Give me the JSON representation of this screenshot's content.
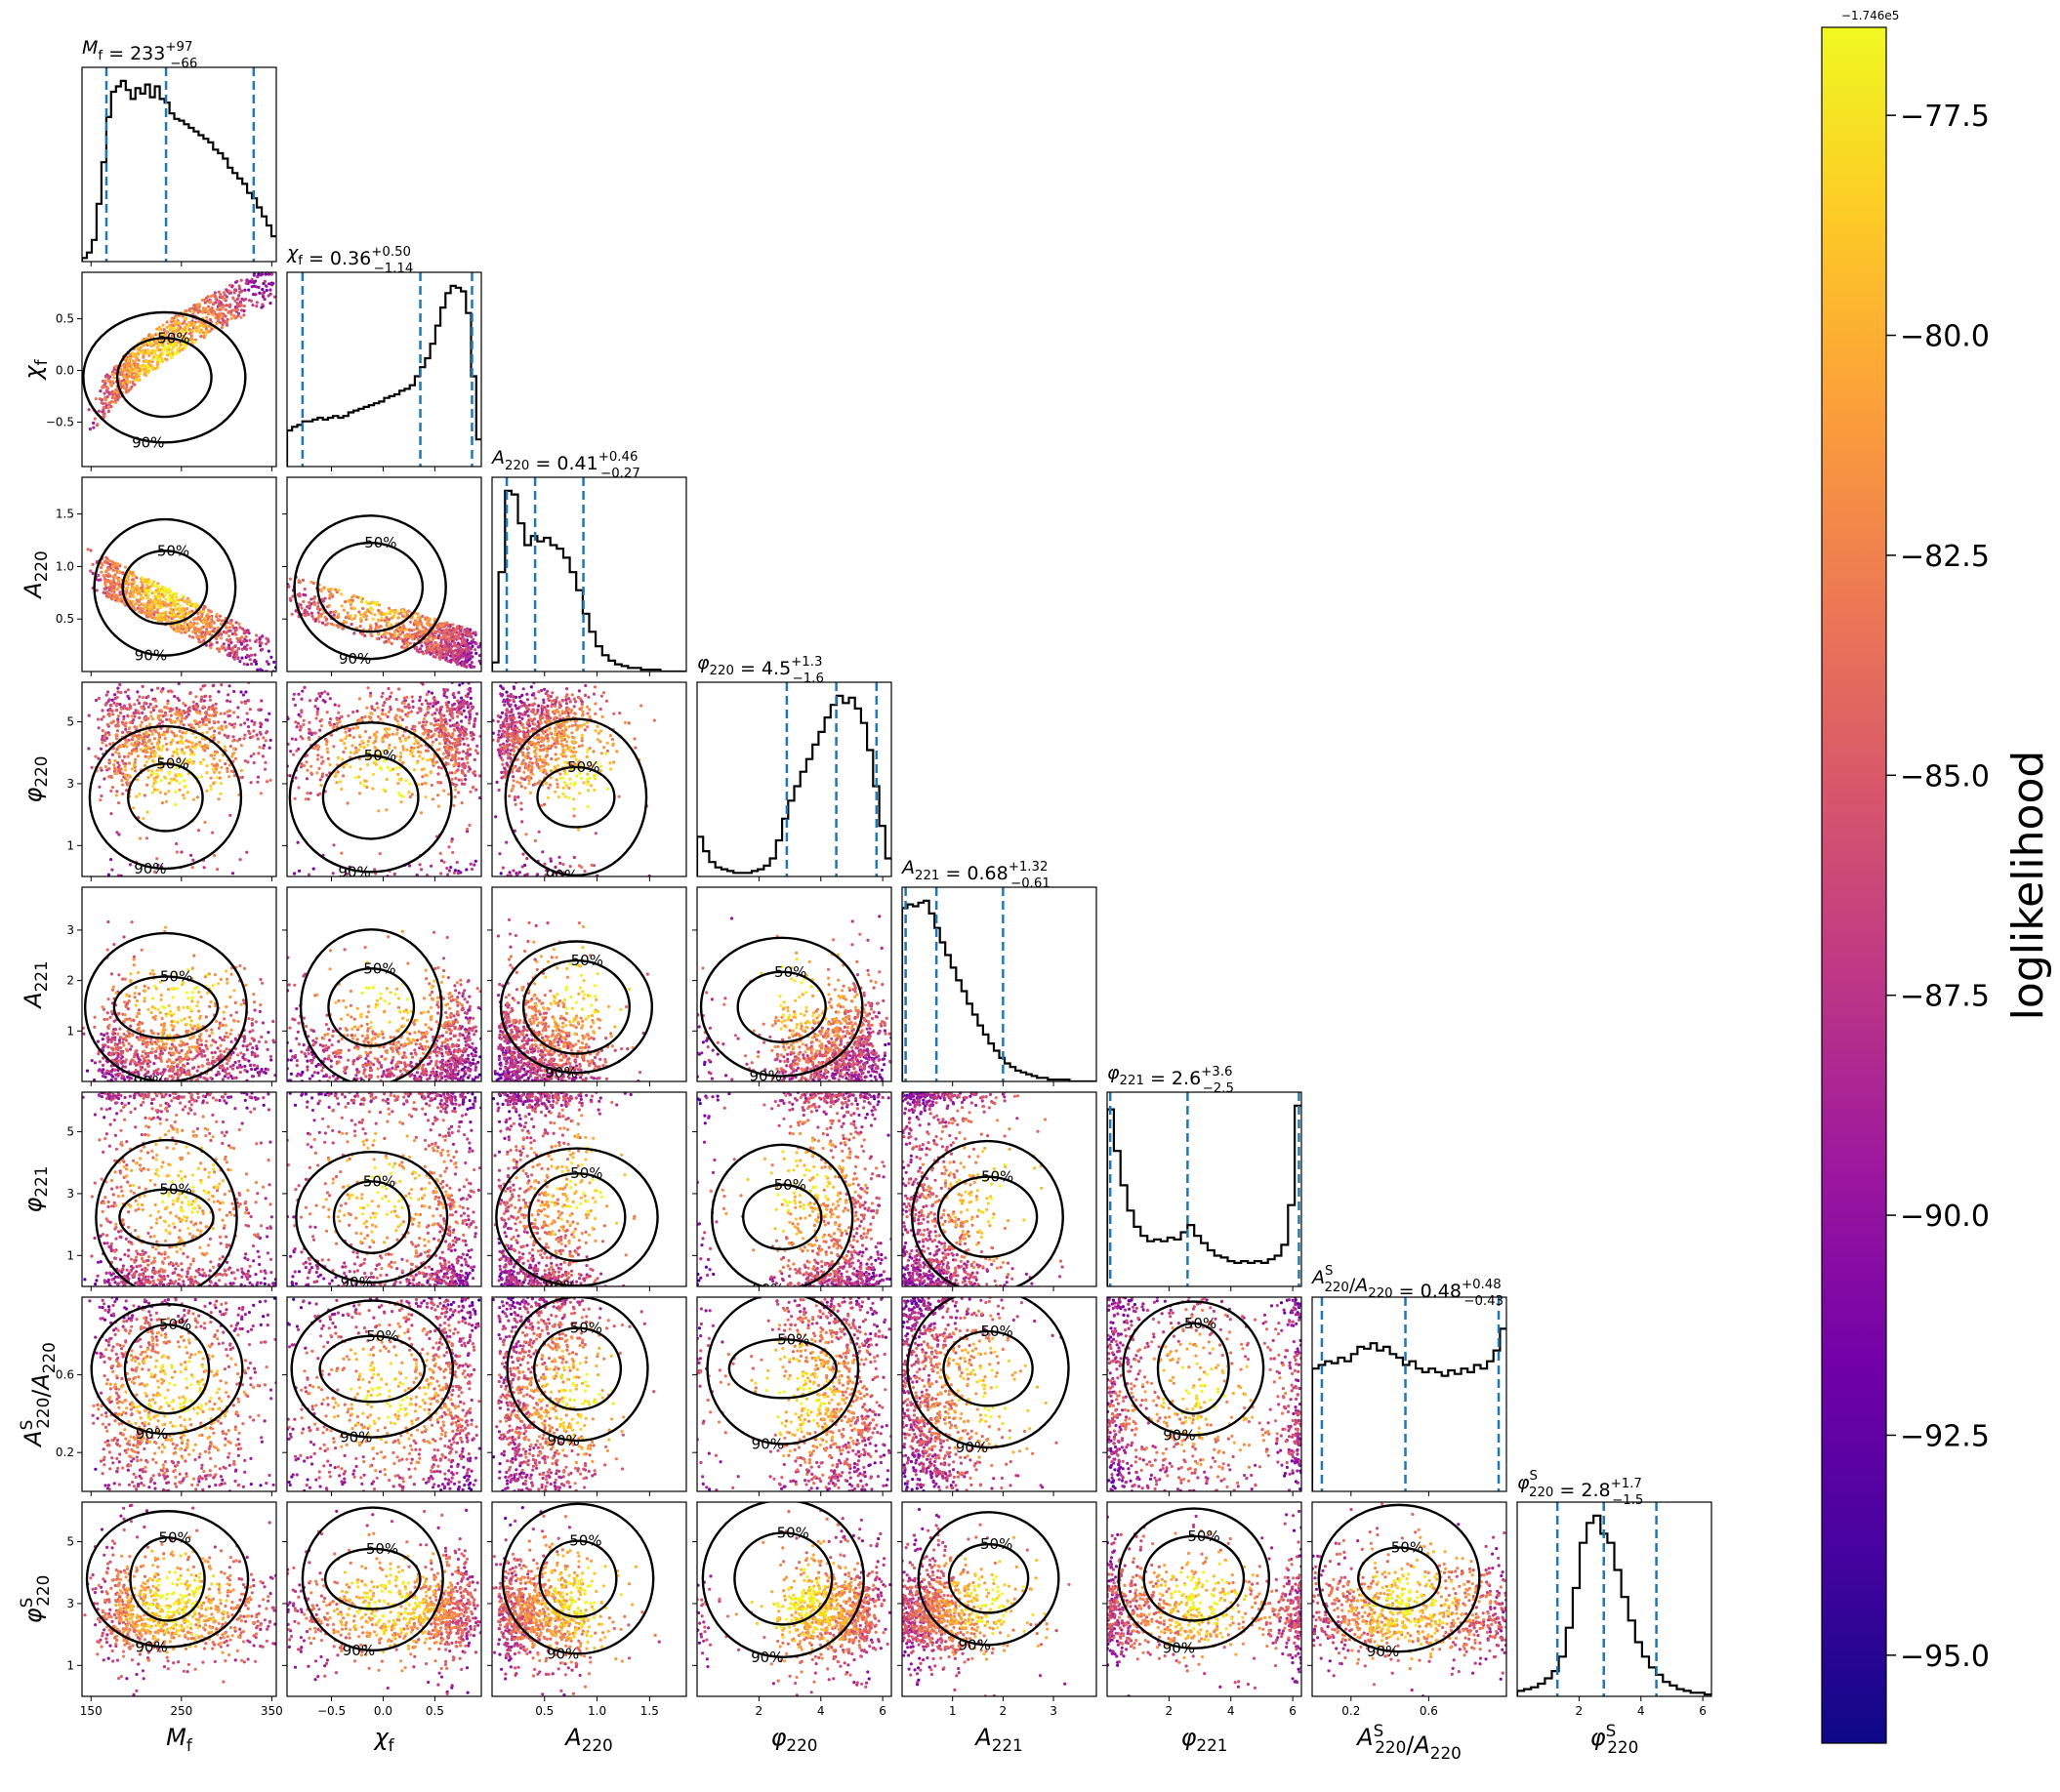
{
  "chart_data": {
    "type": "scatter",
    "subtype": "corner-plot",
    "params": [
      {
        "key": "Mf",
        "sym": "M",
        "sub": "f",
        "sup": "",
        "axis_label": "M_f",
        "range": [
          140,
          355
        ],
        "ticks": [
          150,
          250,
          350
        ],
        "tick_labels": [
          "150",
          "250",
          "350"
        ],
        "median": 233,
        "err_plus": "97",
        "err_minus": "66",
        "median_label": "233",
        "y_ticks": [],
        "y_tick_labels": [],
        "hist": [
          0.02,
          0.05,
          0.12,
          0.32,
          0.55,
          0.8,
          0.94,
          0.97,
          1.0,
          0.95,
          0.9,
          0.96,
          0.93,
          0.98,
          0.91,
          0.97,
          0.9,
          0.88,
          0.82,
          0.79,
          0.78,
          0.76,
          0.74,
          0.72,
          0.7,
          0.68,
          0.66,
          0.62,
          0.6,
          0.57,
          0.52,
          0.49,
          0.46,
          0.43,
          0.38,
          0.35,
          0.3,
          0.25,
          0.2,
          0.14
        ]
      },
      {
        "key": "chif",
        "sym": "χ",
        "sub": "f",
        "sup": "",
        "axis_label": "χ_f",
        "range": [
          -0.93,
          0.95
        ],
        "ticks": [
          -0.5,
          0.0,
          0.5
        ],
        "tick_labels": [
          "−0.5",
          "0.0",
          "0.5"
        ],
        "median": 0.36,
        "err_plus": "0.50",
        "err_minus": "1.14",
        "median_label": "0.36",
        "y_ticks": [
          -0.5,
          0.0,
          0.5
        ],
        "y_tick_labels": [
          "−0.5",
          "0.0",
          "0.5"
        ],
        "hist": [
          0.2,
          0.22,
          0.23,
          0.25,
          0.25,
          0.26,
          0.27,
          0.26,
          0.27,
          0.28,
          0.27,
          0.28,
          0.3,
          0.31,
          0.32,
          0.33,
          0.34,
          0.35,
          0.36,
          0.38,
          0.39,
          0.4,
          0.42,
          0.43,
          0.45,
          0.5,
          0.55,
          0.6,
          0.68,
          0.78,
          0.88,
          0.96,
          1.0,
          0.99,
          0.97,
          0.85,
          0.5,
          0.15
        ]
      },
      {
        "key": "A220",
        "sym": "A",
        "sub": "220",
        "sup": "",
        "axis_label": "A_220",
        "range": [
          0.0,
          1.85
        ],
        "ticks": [
          0.5,
          1.0,
          1.5
        ],
        "tick_labels": [
          "0.5",
          "1.0",
          "1.5"
        ],
        "median": 0.41,
        "err_plus": "0.46",
        "err_minus": "0.27",
        "median_label": "0.41",
        "y_ticks": [
          0.5,
          1.0,
          1.5
        ],
        "y_tick_labels": [
          "0.5",
          "1.0",
          "1.5"
        ],
        "hist": [
          0.05,
          0.55,
          1.0,
          0.98,
          0.82,
          0.7,
          0.75,
          0.72,
          0.74,
          0.7,
          0.68,
          0.63,
          0.55,
          0.45,
          0.32,
          0.22,
          0.14,
          0.09,
          0.06,
          0.04,
          0.03,
          0.02,
          0.02,
          0.01,
          0.01,
          0.01,
          0.0,
          0.0,
          0.0,
          0.0
        ]
      },
      {
        "key": "phi220",
        "sym": "φ",
        "sub": "220",
        "sup": "",
        "axis_label": "φ_220",
        "range": [
          0.0,
          6.28
        ],
        "ticks": [
          2,
          4,
          6
        ],
        "tick_labels": [
          "2",
          "4",
          "6"
        ],
        "median": 4.5,
        "err_plus": "1.3",
        "err_minus": "1.6",
        "median_label": "4.5",
        "y_ticks": [
          1,
          3,
          5
        ],
        "y_tick_labels": [
          "1",
          "3",
          "5"
        ],
        "hist": [
          0.22,
          0.14,
          0.08,
          0.05,
          0.04,
          0.03,
          0.02,
          0.02,
          0.02,
          0.03,
          0.04,
          0.06,
          0.1,
          0.2,
          0.32,
          0.42,
          0.5,
          0.58,
          0.65,
          0.73,
          0.8,
          0.88,
          0.95,
          1.0,
          0.96,
          0.99,
          0.93,
          0.85,
          0.7,
          0.5,
          0.28,
          0.1
        ]
      },
      {
        "key": "A221",
        "sym": "A",
        "sub": "221",
        "sup": "",
        "axis_label": "A_221",
        "range": [
          0.0,
          3.85
        ],
        "ticks": [
          1,
          2,
          3
        ],
        "tick_labels": [
          "1",
          "2",
          "3"
        ],
        "median": 0.68,
        "err_plus": "1.32",
        "err_minus": "0.61",
        "median_label": "0.68",
        "y_ticks": [
          1,
          2,
          3
        ],
        "y_tick_labels": [
          "1",
          "2",
          "3"
        ],
        "hist": [
          0.96,
          0.98,
          0.97,
          0.99,
          1.0,
          0.93,
          0.85,
          0.77,
          0.7,
          0.63,
          0.56,
          0.5,
          0.43,
          0.37,
          0.31,
          0.26,
          0.21,
          0.17,
          0.13,
          0.1,
          0.08,
          0.06,
          0.05,
          0.04,
          0.03,
          0.02,
          0.02,
          0.01,
          0.01,
          0.01,
          0.01,
          0.0,
          0.0,
          0.0,
          0.0,
          0.0
        ]
      },
      {
        "key": "phi221",
        "sym": "φ",
        "sub": "221",
        "sup": "",
        "axis_label": "φ_221",
        "range": [
          0.0,
          6.28
        ],
        "ticks": [
          2,
          4,
          6
        ],
        "tick_labels": [
          "2",
          "4",
          "6"
        ],
        "median": 2.6,
        "err_plus": "3.6",
        "err_minus": "2.5",
        "median_label": "2.6",
        "y_ticks": [
          1,
          3,
          5
        ],
        "y_tick_labels": [
          "1",
          "3",
          "5"
        ],
        "hist": [
          0.98,
          0.75,
          0.56,
          0.42,
          0.33,
          0.28,
          0.25,
          0.26,
          0.25,
          0.27,
          0.26,
          0.3,
          0.34,
          0.28,
          0.24,
          0.2,
          0.17,
          0.16,
          0.14,
          0.13,
          0.14,
          0.13,
          0.14,
          0.13,
          0.15,
          0.17,
          0.23,
          0.45,
          1.0
        ]
      },
      {
        "key": "AS220",
        "sym": "A",
        "sub": "220",
        "sup": "S",
        "axis_label": "A^S_220/A_220",
        "range": [
          0.0,
          1.0
        ],
        "ticks": [
          0.2,
          0.6
        ],
        "tick_labels": [
          "0.2",
          "0.6"
        ],
        "median": 0.48,
        "err_plus": "0.48",
        "err_minus": "0.43",
        "median_label": "0.48",
        "y_ticks": [
          0.2,
          0.6
        ],
        "y_tick_labels": [
          "0.2",
          "0.6"
        ],
        "hist": [
          0.68,
          0.7,
          0.72,
          0.71,
          0.74,
          0.72,
          0.76,
          0.8,
          0.79,
          0.82,
          0.78,
          0.8,
          0.76,
          0.74,
          0.7,
          0.72,
          0.68,
          0.66,
          0.68,
          0.66,
          0.64,
          0.67,
          0.65,
          0.68,
          0.66,
          0.7,
          0.68,
          0.72,
          0.78,
          0.9
        ]
      },
      {
        "key": "phiS220",
        "sym": "φ",
        "sub": "220",
        "sup": "S",
        "axis_label": "φ^S_220",
        "range": [
          0.0,
          6.28
        ],
        "ticks": [
          2,
          4,
          6
        ],
        "tick_labels": [
          "2",
          "4",
          "6"
        ],
        "median": 2.8,
        "err_plus": "1.7",
        "err_minus": "1.5",
        "median_label": "2.8",
        "y_ticks": [
          1,
          3,
          5
        ],
        "y_tick_labels": [
          "1",
          "3",
          "5"
        ],
        "hist": [
          0.03,
          0.04,
          0.05,
          0.07,
          0.1,
          0.14,
          0.22,
          0.38,
          0.6,
          0.85,
          0.96,
          1.0,
          0.9,
          0.85,
          0.7,
          0.55,
          0.42,
          0.3,
          0.22,
          0.16,
          0.12,
          0.08,
          0.06,
          0.04,
          0.03,
          0.02,
          0.02,
          0.01
        ]
      }
    ],
    "contour_labels": [
      "50%",
      "90%"
    ],
    "colorbar": {
      "label": "loglikelihood",
      "offset_text": "−1.746e5",
      "range": [
        -96.0,
        -76.5
      ],
      "ticks": [
        -95.0,
        -92.5,
        -90.0,
        -87.5,
        -85.0,
        -82.5,
        -80.0,
        -77.5
      ],
      "tick_labels": [
        "−95.0",
        "−92.5",
        "−90.0",
        "−87.5",
        "−85.0",
        "−82.5",
        "−80.0",
        "−77.5"
      ],
      "colormap": "plasma",
      "stops": [
        "#0d0887",
        "#46039f",
        "#7201a8",
        "#9c179e",
        "#bd3786",
        "#d8576b",
        "#ed7953",
        "#fb9f3a",
        "#fdca26",
        "#f0f921"
      ]
    },
    "colors": {
      "median_line": "#1f77b4",
      "hist_line": "#000000",
      "contour": "#000000"
    }
  },
  "title_templates": {
    "Mf": "M_f = 233+97−66",
    "chif": "χ_f = 0.36+0.50−1.14",
    "A220": "A_220 = 0.41+0.46−0.27",
    "phi220": "φ_220 = 4.5+1.3−1.6",
    "A221": "A_221 = 0.68+1.32−0.61",
    "phi221": "φ_221 = 2.6+3.6−2.5",
    "AS220": "A^S_220/A_220 = 0.48+0.48−0.43",
    "phiS220": "φ^S_220 = 2.8+1.7−1.5"
  }
}
